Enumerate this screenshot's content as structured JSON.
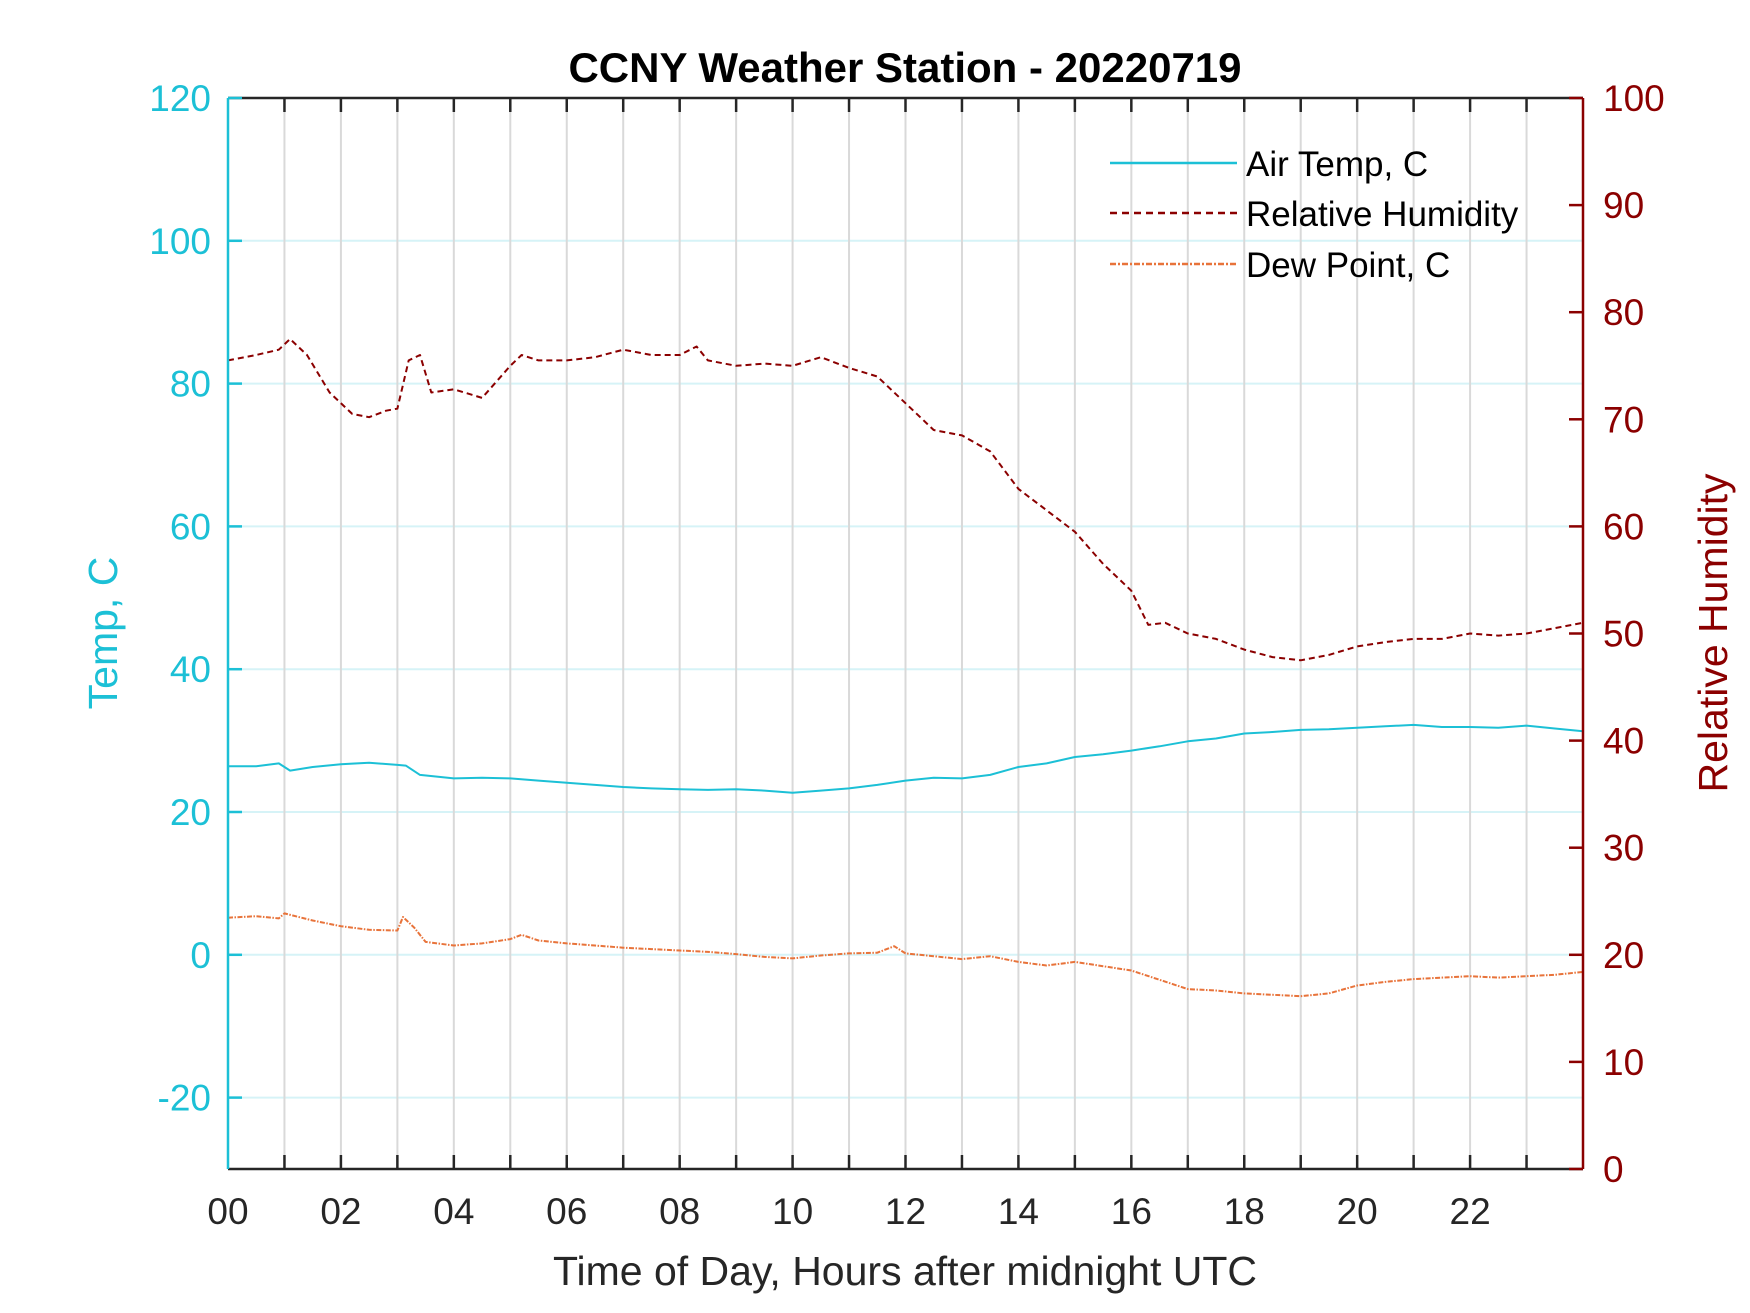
{
  "chart_data": {
    "type": "line",
    "title": "CCNY Weather Station - 20220719",
    "xlabel": "Time of Day, Hours after midnight UTC",
    "ylabel_left": "Temp, C",
    "ylabel_right": "Relative Humidity",
    "xlim": [
      0,
      24
    ],
    "ylim_left": [
      -30,
      120
    ],
    "ylim_right": [
      0,
      100
    ],
    "x_ticks": [
      0,
      2,
      4,
      6,
      8,
      10,
      12,
      14,
      16,
      18,
      20,
      22
    ],
    "x_tick_labels": [
      "00",
      "02",
      "04",
      "06",
      "08",
      "10",
      "12",
      "14",
      "16",
      "18",
      "20",
      "22"
    ],
    "x_grid_step_hours": 1,
    "y_ticks_left": [
      -20,
      0,
      20,
      40,
      60,
      80,
      100,
      120
    ],
    "y_tick_labels_left": [
      "-20",
      "0",
      "20",
      "40",
      "60",
      "80",
      "100",
      "120"
    ],
    "y_ticks_right": [
      0,
      10,
      20,
      30,
      40,
      50,
      60,
      70,
      80,
      90,
      100
    ],
    "y_tick_labels_right": [
      "0",
      "10",
      "20",
      "30",
      "40",
      "50",
      "60",
      "70",
      "80",
      "90",
      "100"
    ],
    "grid": true,
    "legend_position": "top-right",
    "colors": {
      "left_axis": "#1cc0d6",
      "right_axis": "#8b0000",
      "air_temp": "#1cc0d6",
      "relative_humidity": "#8b0000",
      "dew_point": "#e8733a",
      "x_grid": "#d9d9d9",
      "y_grid": "#d6f3f7"
    },
    "series": [
      {
        "name": "Air Temp, C",
        "axis": "left",
        "style": "solid",
        "x": [
          0,
          0.5,
          0.9,
          1.1,
          1.5,
          2,
          2.5,
          3,
          3.15,
          3.4,
          4,
          4.5,
          5,
          5.5,
          6,
          6.5,
          7,
          7.5,
          8,
          8.5,
          9,
          9.5,
          10,
          10.5,
          11,
          11.5,
          12,
          12.5,
          13,
          13.5,
          14,
          14.5,
          15,
          15.5,
          16,
          16.5,
          17,
          17.5,
          18,
          18.5,
          19,
          19.5,
          20,
          20.5,
          21,
          21.5,
          22,
          22.5,
          23,
          23.5,
          24
        ],
        "values": [
          26.4,
          26.4,
          26.8,
          25.8,
          26.3,
          26.7,
          26.9,
          26.6,
          26.5,
          25.2,
          24.7,
          24.8,
          24.7,
          24.4,
          24.1,
          23.8,
          23.5,
          23.3,
          23.2,
          23.1,
          23.2,
          23.0,
          22.7,
          23.0,
          23.3,
          23.8,
          24.4,
          24.8,
          24.7,
          25.2,
          26.3,
          26.8,
          27.7,
          28.1,
          28.6,
          29.2,
          29.9,
          30.3,
          31.0,
          31.2,
          31.5,
          31.6,
          31.8,
          32.0,
          32.2,
          31.9,
          31.9,
          31.8,
          32.1,
          31.7,
          31.3
        ]
      },
      {
        "name": "Relative Humidity",
        "axis": "right",
        "style": "dashed",
        "x": [
          0,
          0.5,
          0.9,
          1.1,
          1.4,
          1.8,
          2.2,
          2.5,
          2.8,
          3.0,
          3.2,
          3.4,
          3.6,
          4.0,
          4.5,
          5.0,
          5.2,
          5.5,
          6.0,
          6.5,
          7.0,
          7.5,
          8.0,
          8.3,
          8.5,
          9.0,
          9.5,
          10.0,
          10.5,
          11.0,
          11.5,
          12.0,
          12.5,
          13.0,
          13.5,
          14.0,
          14.5,
          15.0,
          15.5,
          16.0,
          16.3,
          16.6,
          17.0,
          17.5,
          18.0,
          18.5,
          19.0,
          19.5,
          20.0,
          20.5,
          21.0,
          21.5,
          22.0,
          22.5,
          23.0,
          23.5,
          24.0
        ],
        "values": [
          75.5,
          76.0,
          76.5,
          77.5,
          76.0,
          72.5,
          70.5,
          70.2,
          70.8,
          71.0,
          75.5,
          76.0,
          72.5,
          72.8,
          72.0,
          75.0,
          76.0,
          75.5,
          75.5,
          75.8,
          76.5,
          76.0,
          76.0,
          76.8,
          75.5,
          75.0,
          75.2,
          75.0,
          75.8,
          74.8,
          74.0,
          71.5,
          69.0,
          68.5,
          67.0,
          63.5,
          61.5,
          59.5,
          56.5,
          54.0,
          50.8,
          51.0,
          50.0,
          49.5,
          48.5,
          47.8,
          47.5,
          48.0,
          48.8,
          49.2,
          49.5,
          49.5,
          50.0,
          49.8,
          50.0,
          50.5,
          51.0
        ]
      },
      {
        "name": "Dew Point, C",
        "axis": "left",
        "style": "dash-dot",
        "x": [
          0,
          0.5,
          0.9,
          1.0,
          1.5,
          2.0,
          2.5,
          3.0,
          3.1,
          3.3,
          3.5,
          4.0,
          4.5,
          5.0,
          5.2,
          5.5,
          6.0,
          6.5,
          7.0,
          7.5,
          8.0,
          8.5,
          9.0,
          9.5,
          10.0,
          10.5,
          11.0,
          11.5,
          11.8,
          12.0,
          12.5,
          13.0,
          13.5,
          14.0,
          14.5,
          15.0,
          15.5,
          16.0,
          16.5,
          17.0,
          17.5,
          18.0,
          18.5,
          19.0,
          19.5,
          20.0,
          20.5,
          21.0,
          21.5,
          22.0,
          22.5,
          23.0,
          23.5,
          24.0
        ],
        "values": [
          5.2,
          5.4,
          5.1,
          5.8,
          4.8,
          4.0,
          3.5,
          3.4,
          5.3,
          3.8,
          1.8,
          1.3,
          1.6,
          2.2,
          2.8,
          2.0,
          1.6,
          1.3,
          1.0,
          0.8,
          0.6,
          0.4,
          0.1,
          -0.3,
          -0.5,
          -0.1,
          0.2,
          0.3,
          1.2,
          0.2,
          -0.2,
          -0.6,
          -0.2,
          -1.0,
          -1.5,
          -1.0,
          -1.6,
          -2.2,
          -3.5,
          -4.8,
          -5.0,
          -5.4,
          -5.6,
          -5.8,
          -5.4,
          -4.3,
          -3.8,
          -3.4,
          -3.2,
          -3.0,
          -3.2,
          -3.0,
          -2.8,
          -2.4
        ]
      }
    ]
  }
}
